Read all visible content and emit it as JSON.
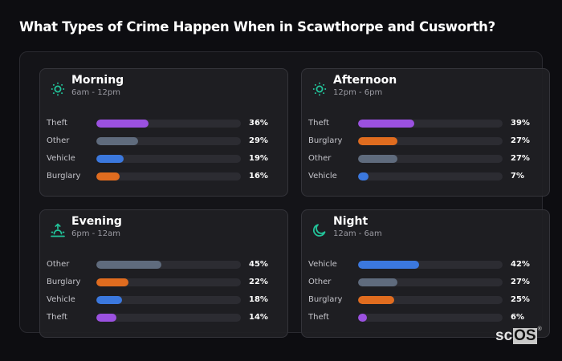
{
  "title": "What Types of Crime Happen When in Scawthorpe and Cusworth?",
  "logo": {
    "sc": "sc",
    "os": "OS",
    "reg": "®"
  },
  "colors": {
    "Theft": "#9b51e0",
    "Other": "#5f6b7d",
    "Vehicle": "#3b78de",
    "Burglary": "#e06c1f",
    "icon_accent": "#22c49a",
    "track": "#2c2c32"
  },
  "cards": [
    {
      "title": "Morning",
      "subtitle": "6am - 12pm",
      "icon": "sun-icon",
      "rows": [
        {
          "label": "Theft",
          "value": 36,
          "display": "36%"
        },
        {
          "label": "Other",
          "value": 29,
          "display": "29%"
        },
        {
          "label": "Vehicle",
          "value": 19,
          "display": "19%"
        },
        {
          "label": "Burglary",
          "value": 16,
          "display": "16%"
        }
      ]
    },
    {
      "title": "Afternoon",
      "subtitle": "12pm - 6pm",
      "icon": "sun-icon",
      "rows": [
        {
          "label": "Theft",
          "value": 39,
          "display": "39%"
        },
        {
          "label": "Burglary",
          "value": 27,
          "display": "27%"
        },
        {
          "label": "Other",
          "value": 27,
          "display": "27%"
        },
        {
          "label": "Vehicle",
          "value": 7,
          "display": "7%"
        }
      ]
    },
    {
      "title": "Evening",
      "subtitle": "6pm - 12am",
      "icon": "sunset-icon",
      "rows": [
        {
          "label": "Other",
          "value": 45,
          "display": "45%"
        },
        {
          "label": "Burglary",
          "value": 22,
          "display": "22%"
        },
        {
          "label": "Vehicle",
          "value": 18,
          "display": "18%"
        },
        {
          "label": "Theft",
          "value": 14,
          "display": "14%"
        }
      ]
    },
    {
      "title": "Night",
      "subtitle": "12am - 6am",
      "icon": "moon-icon",
      "rows": [
        {
          "label": "Vehicle",
          "value": 42,
          "display": "42%"
        },
        {
          "label": "Other",
          "value": 27,
          "display": "27%"
        },
        {
          "label": "Burglary",
          "value": 25,
          "display": "25%"
        },
        {
          "label": "Theft",
          "value": 6,
          "display": "6%"
        }
      ]
    }
  ],
  "chart_data": {
    "type": "bar",
    "orientation": "horizontal",
    "title": "What Types of Crime Happen When in Scawthorpe and Cusworth?",
    "xlabel": "",
    "ylabel": "",
    "xlim": [
      0,
      100
    ],
    "unit": "%",
    "grid": false,
    "legend": null,
    "panels": [
      {
        "title": "Morning",
        "subtitle": "6am - 12pm",
        "categories": [
          "Theft",
          "Other",
          "Vehicle",
          "Burglary"
        ],
        "values": [
          36,
          29,
          19,
          16
        ]
      },
      {
        "title": "Afternoon",
        "subtitle": "12pm - 6pm",
        "categories": [
          "Theft",
          "Burglary",
          "Other",
          "Vehicle"
        ],
        "values": [
          39,
          27,
          27,
          7
        ]
      },
      {
        "title": "Evening",
        "subtitle": "6pm - 12am",
        "categories": [
          "Other",
          "Burglary",
          "Vehicle",
          "Theft"
        ],
        "values": [
          45,
          22,
          18,
          14
        ]
      },
      {
        "title": "Night",
        "subtitle": "12am - 6am",
        "categories": [
          "Vehicle",
          "Other",
          "Burglary",
          "Theft"
        ],
        "values": [
          42,
          27,
          25,
          6
        ]
      }
    ],
    "series": [
      {
        "name": "Theft",
        "values": [
          36,
          39,
          14,
          6
        ]
      },
      {
        "name": "Other",
        "values": [
          29,
          27,
          45,
          27
        ]
      },
      {
        "name": "Vehicle",
        "values": [
          19,
          7,
          18,
          42
        ]
      },
      {
        "name": "Burglary",
        "values": [
          16,
          27,
          22,
          25
        ]
      }
    ],
    "categories": [
      "Morning",
      "Afternoon",
      "Evening",
      "Night"
    ]
  }
}
